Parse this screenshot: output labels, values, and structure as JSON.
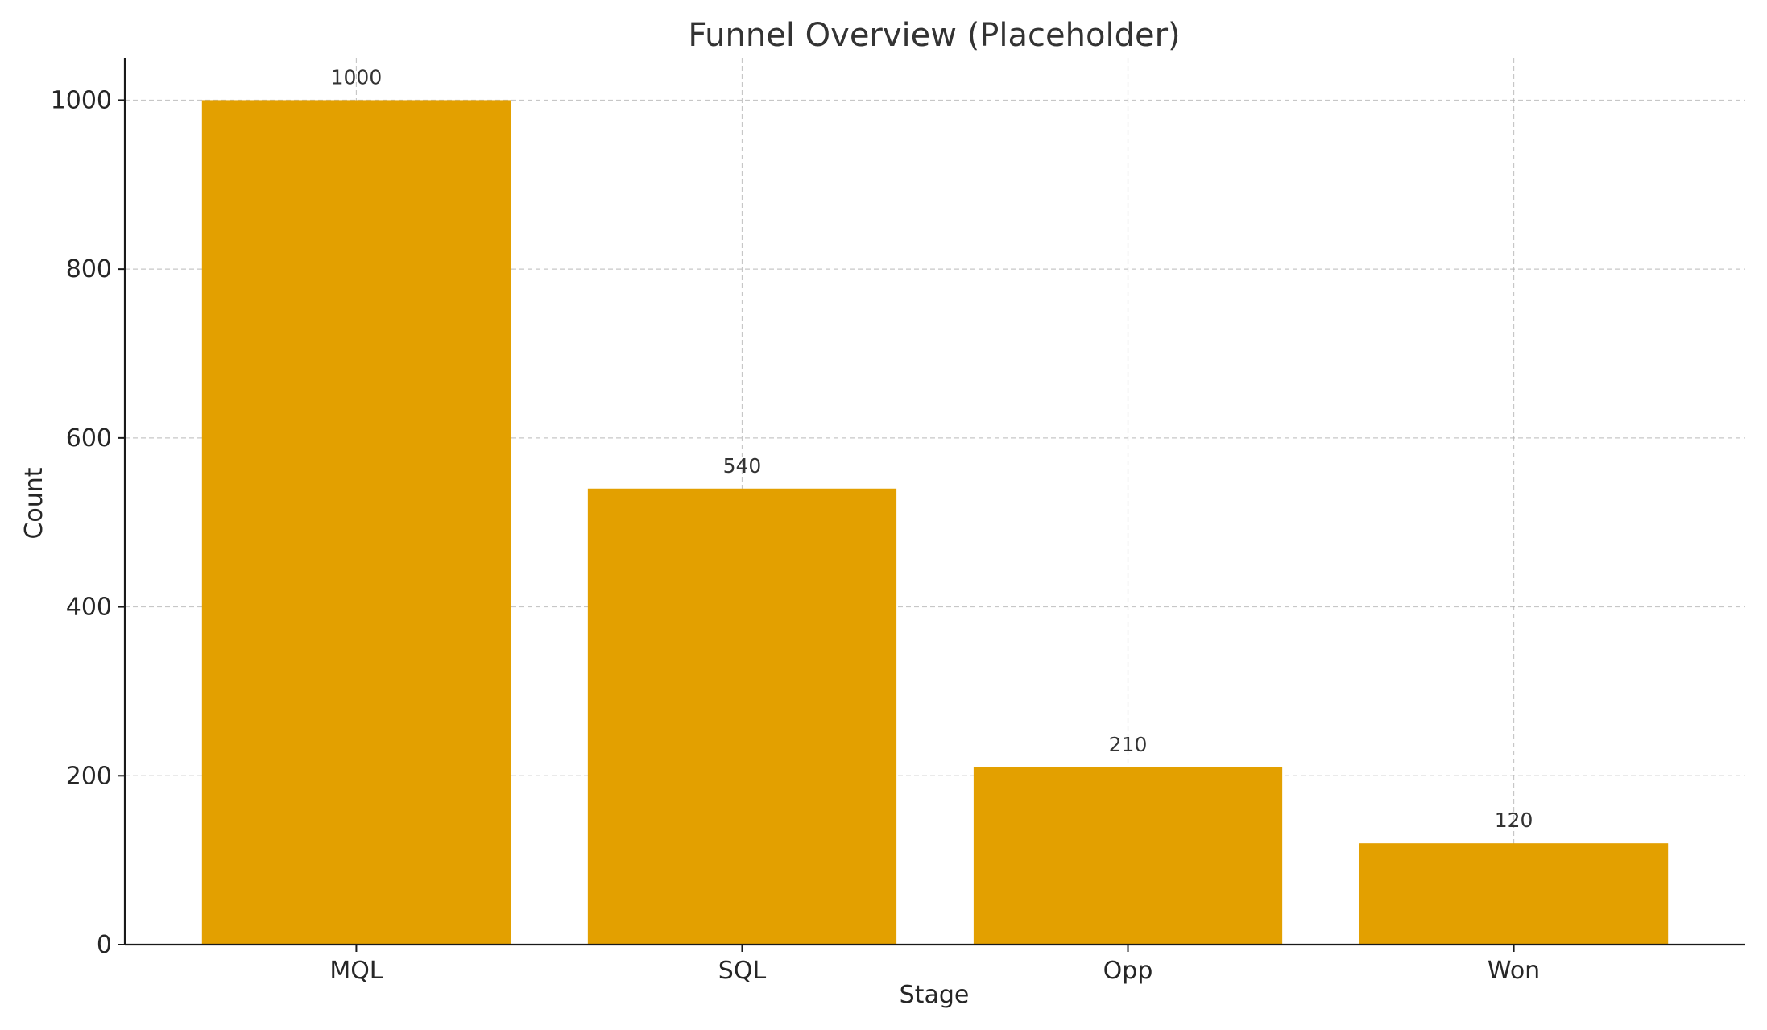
{
  "chart_data": {
    "type": "bar",
    "title": "Funnel Overview (Placeholder)",
    "xlabel": "Stage",
    "ylabel": "Count",
    "categories": [
      "MQL",
      "SQL",
      "Opp",
      "Won"
    ],
    "values": [
      1000,
      540,
      210,
      120
    ],
    "data_labels": [
      "1000",
      "540",
      "210",
      "120"
    ],
    "ylim": [
      0,
      1050
    ],
    "yticks": [
      0,
      200,
      400,
      600,
      800,
      1000
    ],
    "grid": true,
    "legend": "none",
    "bar_color": "#E3A000",
    "grid_color": "#b0b0b0"
  }
}
